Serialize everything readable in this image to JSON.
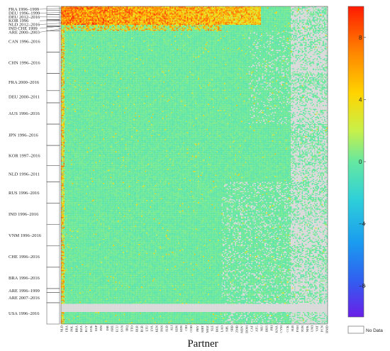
{
  "chart_data": {
    "type": "heatmap",
    "xlabel": "Partner",
    "colorbar": {
      "ticks": [
        8,
        4,
        0,
        -4,
        -8
      ],
      "range": [
        -10,
        10
      ],
      "colormap": "rainbow (purple-blue-green-yellow-red)",
      "missing_label": "No Data",
      "missing_color": "#d9d9d9"
    },
    "row_groups": [
      {
        "label": "FRA 1996–1999",
        "rows": 4
      },
      {
        "label": "DEU 1996–1999",
        "rows": 4
      },
      {
        "label": "DEU 2012–2016",
        "rows": 5
      },
      {
        "label": "KOR 1996",
        "rows": 1
      },
      {
        "label": "NLD 2012–2016",
        "rows": 5
      },
      {
        "label": "IND CHE 1999",
        "rows": 1
      },
      {
        "label": "ARE 2000–2003",
        "rows": 4
      },
      {
        "label": "CAN 1996–2016",
        "rows": 21
      },
      {
        "label": "CHN 1996–2016",
        "rows": 21
      },
      {
        "label": "FRA 2000–2016",
        "rows": 17
      },
      {
        "label": "DEU 2000–2011",
        "rows": 12
      },
      {
        "label": "AUS 1996–2016",
        "rows": 21
      },
      {
        "label": "JPN 1996–2016",
        "rows": 21
      },
      {
        "label": "KOR 1997–2016",
        "rows": 20
      },
      {
        "label": "NLD 1996–2011",
        "rows": 16
      },
      {
        "label": "RUS 1996–2016",
        "rows": 21
      },
      {
        "label": "IND 1996–2016",
        "rows": 21
      },
      {
        "label": "VNM 1996–2016",
        "rows": 21
      },
      {
        "label": "CHE 1996–2016",
        "rows": 21
      },
      {
        "label": "BRA 1996–2016",
        "rows": 21
      },
      {
        "label": "ARE 1996–1999",
        "rows": 4
      },
      {
        "label": "ARE 2007–2016",
        "rows": 10
      },
      {
        "label": "USA 1996–2016",
        "rows": 21
      }
    ],
    "x_tick_labels": [
      "NLD",
      "FRA",
      "POL",
      "BRA",
      "DZA",
      "EGY",
      "SVK",
      "ESP",
      "FIN",
      "ISR",
      "ARE",
      "ECU",
      "SVN",
      "IRQ",
      "TTO",
      "BLR",
      "BGR",
      "LTU",
      "LVA",
      "KEN",
      "PAN",
      "ALB",
      "ALI",
      "SDN",
      "SDN",
      "CRI",
      "COD",
      "PRY",
      "MRT",
      "MOZ",
      "SLE",
      "BOL",
      "LAO",
      "NPL",
      "SRB",
      "ZMB",
      "MDV",
      "DOM",
      "CAF",
      "ATG",
      "NIU",
      "BHS",
      "PRI",
      "KNA",
      "CYM",
      "CCK",
      "SLB",
      "FSM",
      "TON",
      "NFK",
      "UMI",
      "VAT",
      "PCN",
      "HMD"
    ],
    "n_columns": 216,
    "summary": "Most cell values near 0 (green); positive outliers (yellow-red, up to ~9) concentrated in the top rows and leftmost partner columns; grey blocks mark missing data in rightmost partner columns and in full-width bands."
  }
}
